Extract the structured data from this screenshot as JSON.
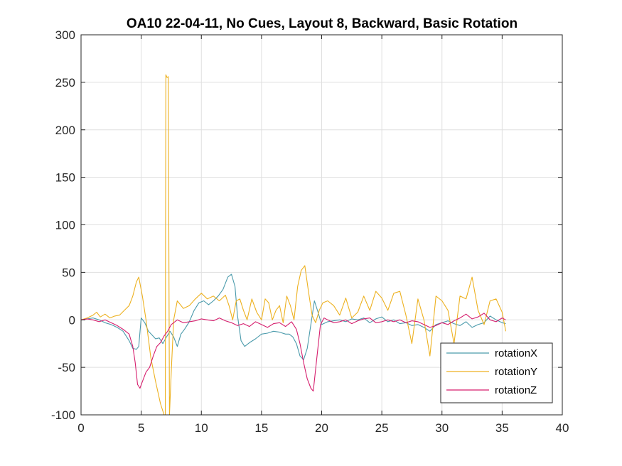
{
  "chart_data": {
    "type": "line",
    "title": "OA10 22-04-11, No Cues, Layout 8, Backward, Basic Rotation",
    "xlim": [
      0,
      40
    ],
    "ylim": [
      -100,
      300
    ],
    "xticks": [
      0,
      5,
      10,
      15,
      20,
      25,
      30,
      35,
      40
    ],
    "yticks": [
      -100,
      -50,
      0,
      50,
      100,
      150,
      200,
      250,
      300
    ],
    "xtick_labels": [
      "0",
      "5",
      "10",
      "15",
      "20",
      "25",
      "30",
      "35",
      "40"
    ],
    "ytick_labels": [
      "-100",
      "-50",
      "0",
      "50",
      "100",
      "150",
      "200",
      "250",
      "300"
    ],
    "grid": true,
    "legend_position": "bottom-right",
    "series": [
      {
        "name": "rotationX",
        "color": "#4a9aab",
        "x": [
          0,
          0.5,
          1,
          1.5,
          2,
          2.5,
          3,
          3.5,
          4,
          4.3,
          4.6,
          4.8,
          5,
          5.3,
          5.6,
          5.9,
          6.2,
          6.5,
          6.8,
          7.1,
          7.4,
          7.7,
          8,
          8.3,
          8.6,
          9,
          9.4,
          9.8,
          10.2,
          10.6,
          11,
          11.4,
          11.8,
          12.2,
          12.5,
          12.8,
          13,
          13.3,
          13.6,
          14,
          14.5,
          15,
          15.5,
          16,
          16.5,
          17,
          17.3,
          17.6,
          17.9,
          18.2,
          18.5,
          18.8,
          19.1,
          19.4,
          19.7,
          20,
          20.5,
          21,
          21.5,
          22,
          22.5,
          23,
          23.5,
          24,
          24.5,
          25,
          25.5,
          26,
          26.5,
          27,
          27.5,
          28,
          28.5,
          29,
          29.5,
          30,
          30.5,
          31,
          31.5,
          32,
          32.5,
          33,
          33.5,
          34,
          34.5,
          35,
          35.3
        ],
        "y": [
          0,
          1,
          2,
          0,
          -3,
          -5,
          -8,
          -12,
          -22,
          -30,
          -31,
          -28,
          2,
          -3,
          -12,
          -16,
          -20,
          -19,
          -25,
          -18,
          -12,
          -18,
          -28,
          -15,
          -10,
          -2,
          10,
          18,
          20,
          16,
          20,
          25,
          32,
          45,
          48,
          35,
          5,
          -22,
          -28,
          -24,
          -20,
          -15,
          -14,
          -12,
          -13,
          -15,
          -15,
          -18,
          -25,
          -38,
          -42,
          -30,
          -5,
          20,
          8,
          -5,
          -2,
          -1,
          0,
          -2,
          1,
          0,
          2,
          -3,
          1,
          3,
          -2,
          0,
          -4,
          -3,
          -6,
          -5,
          -8,
          -12,
          -5,
          -3,
          -1,
          -4,
          -6,
          -2,
          -8,
          -5,
          -3,
          4,
          0,
          -3,
          -4
        ]
      },
      {
        "name": "rotationY",
        "color": "#edb120",
        "x": [
          0,
          0.5,
          1,
          1.3,
          1.6,
          2,
          2.4,
          2.8,
          3.2,
          3.6,
          4,
          4.3,
          4.6,
          4.8,
          5.1,
          5.4,
          5.8,
          6.2,
          6.6,
          6.9,
          7,
          7.05,
          7.15,
          7.25,
          7.35,
          7.5,
          7.7,
          8,
          8.5,
          9,
          9.5,
          10,
          10.5,
          11,
          11.5,
          12,
          12.3,
          12.6,
          12.9,
          13.2,
          13.5,
          13.8,
          14.2,
          14.6,
          15,
          15.3,
          15.6,
          15.9,
          16.2,
          16.5,
          16.8,
          17.1,
          17.4,
          17.7,
          18,
          18.3,
          18.6,
          18.9,
          19.2,
          19.5,
          19.8,
          20.1,
          20.5,
          21,
          21.5,
          22,
          22.5,
          23,
          23.5,
          24,
          24.5,
          25,
          25.5,
          26,
          26.5,
          27,
          27.5,
          28,
          28.5,
          29,
          29.5,
          30,
          30.5,
          31,
          31.5,
          32,
          32.5,
          33,
          33.5,
          34,
          34.5,
          35,
          35.3
        ],
        "y": [
          0,
          2,
          5,
          8,
          3,
          6,
          2,
          4,
          5,
          10,
          15,
          25,
          40,
          45,
          25,
          0,
          -40,
          -65,
          -88,
          -100,
          -100,
          258,
          255,
          256,
          -100,
          -55,
          0,
          20,
          12,
          15,
          22,
          28,
          22,
          25,
          20,
          26,
          15,
          0,
          20,
          22,
          10,
          0,
          22,
          8,
          0,
          22,
          18,
          0,
          10,
          15,
          -3,
          25,
          15,
          0,
          35,
          52,
          57,
          30,
          5,
          -3,
          10,
          18,
          20,
          15,
          5,
          23,
          2,
          8,
          25,
          10,
          30,
          23,
          10,
          28,
          30,
          5,
          -25,
          22,
          0,
          -38,
          25,
          20,
          10,
          -25,
          25,
          22,
          45,
          10,
          -5,
          20,
          22,
          8,
          -12
        ]
      },
      {
        "name": "rotationZ",
        "color": "#d61f6e",
        "x": [
          0,
          0.5,
          1,
          1.5,
          2,
          2.5,
          3,
          3.5,
          4,
          4.3,
          4.5,
          4.7,
          4.9,
          5.1,
          5.4,
          5.7,
          6,
          6.3,
          6.6,
          6.9,
          7.2,
          7.5,
          7.8,
          8,
          8.5,
          9,
          9.5,
          10,
          10.5,
          11,
          11.5,
          12,
          12.5,
          13,
          13.5,
          14,
          14.5,
          15,
          15.5,
          16,
          16.5,
          17,
          17.5,
          17.9,
          18.2,
          18.5,
          18.8,
          19.1,
          19.3,
          19.6,
          19.9,
          20.2,
          20.5,
          21,
          21.5,
          22,
          22.5,
          23,
          23.5,
          24,
          24.5,
          25,
          25.5,
          26,
          26.5,
          27,
          27.5,
          28,
          28.5,
          29,
          29.5,
          30,
          30.5,
          31,
          31.5,
          32,
          32.5,
          33,
          33.5,
          34,
          34.5,
          35,
          35.3
        ],
        "y": [
          0,
          1,
          0,
          -2,
          0,
          -3,
          -6,
          -10,
          -15,
          -28,
          -45,
          -68,
          -72,
          -65,
          -55,
          -50,
          -38,
          -28,
          -24,
          -17,
          -12,
          -5,
          -2,
          0,
          -3,
          -2,
          -1,
          1,
          0,
          -1,
          2,
          -1,
          -3,
          -6,
          -4,
          -7,
          -2,
          -5,
          -8,
          -4,
          -3,
          -7,
          -2,
          -10,
          -25,
          -45,
          -62,
          -72,
          -75,
          -40,
          -5,
          2,
          0,
          -3,
          -2,
          0,
          -4,
          -1,
          1,
          2,
          -3,
          -2,
          0,
          -2,
          0,
          -3,
          -1,
          -2,
          -5,
          -8,
          -6,
          -3,
          -5,
          -1,
          2,
          6,
          1,
          3,
          7,
          0,
          -2,
          2,
          0
        ]
      }
    ]
  }
}
